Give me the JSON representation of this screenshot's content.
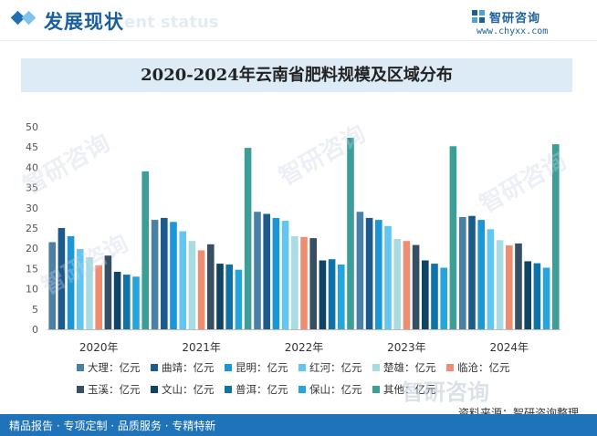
{
  "header": {
    "section_title": "发展现状",
    "section_subtitle": "ent status",
    "brand_name": "智研咨询",
    "brand_url": "www.chyxx.com"
  },
  "footer": {
    "source": "资料来源：智研咨询整理",
    "tagline": "精品报告 · 专项定制 · 品质服务 · 专精特新"
  },
  "watermark": "智研咨询",
  "chart_data": {
    "type": "bar",
    "title": "2020-2024年云南省肥料规模及区域分布",
    "categories": [
      "2020年",
      "2021年",
      "2022年",
      "2023年",
      "2024年"
    ],
    "ylim": [
      0,
      50
    ],
    "yticks": [
      0,
      5,
      10,
      15,
      20,
      25,
      30,
      35,
      40,
      45,
      50
    ],
    "grid": false,
    "legend_position": "bottom",
    "series": [
      {
        "name": "大理：亿元",
        "color": "#4a7fa6",
        "values": [
          21.5,
          27.0,
          29.0,
          29.0,
          27.7
        ]
      },
      {
        "name": "曲靖：亿元",
        "color": "#1d5a8c",
        "values": [
          25.0,
          27.5,
          28.5,
          27.5,
          28.0
        ]
      },
      {
        "name": "昆明：亿元",
        "color": "#1b96d6",
        "values": [
          23.0,
          26.5,
          27.5,
          27.0,
          27.0
        ]
      },
      {
        "name": "红河：亿元",
        "color": "#62c6f0",
        "values": [
          19.8,
          24.2,
          26.8,
          25.5,
          24.7
        ]
      },
      {
        "name": "楚雄：亿元",
        "color": "#a9dbe3",
        "values": [
          17.8,
          21.8,
          23.0,
          22.3,
          22.0
        ]
      },
      {
        "name": "临沧：亿元",
        "color": "#ee8d70",
        "values": [
          15.8,
          19.5,
          22.8,
          21.8,
          20.7
        ]
      },
      {
        "name": "玉溪：亿元",
        "color": "#364f63",
        "values": [
          18.2,
          21.0,
          22.5,
          20.8,
          21.2
        ]
      },
      {
        "name": "文山：亿元",
        "color": "#0f4466",
        "values": [
          14.2,
          16.2,
          17.0,
          17.0,
          16.8
        ]
      },
      {
        "name": "普洱：亿元",
        "color": "#1172a8",
        "values": [
          13.5,
          16.0,
          17.3,
          16.2,
          16.3
        ]
      },
      {
        "name": "保山：亿元",
        "color": "#26a5dd",
        "values": [
          13.0,
          14.7,
          16.0,
          15.2,
          15.2
        ]
      },
      {
        "name": "其他：亿元",
        "color": "#3d9e97",
        "values": [
          39.0,
          44.8,
          47.3,
          45.2,
          45.7
        ]
      }
    ]
  }
}
